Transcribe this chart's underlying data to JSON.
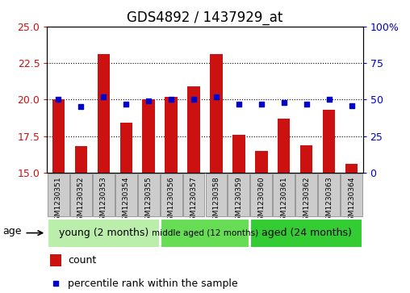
{
  "title": "GDS4892 / 1437929_at",
  "samples": [
    "GSM1230351",
    "GSM1230352",
    "GSM1230353",
    "GSM1230354",
    "GSM1230355",
    "GSM1230356",
    "GSM1230357",
    "GSM1230358",
    "GSM1230359",
    "GSM1230360",
    "GSM1230361",
    "GSM1230362",
    "GSM1230363",
    "GSM1230364"
  ],
  "counts": [
    20.0,
    16.8,
    23.1,
    18.4,
    20.0,
    20.2,
    20.9,
    23.1,
    17.6,
    16.5,
    18.7,
    16.9,
    19.3,
    15.6
  ],
  "percentile_ranks": [
    50,
    45,
    52,
    47,
    49,
    50,
    50,
    52,
    47,
    47,
    48,
    47,
    50,
    46
  ],
  "ylim_left": [
    15,
    25
  ],
  "ylim_right": [
    0,
    100
  ],
  "yticks_left": [
    15,
    17.5,
    20,
    22.5,
    25
  ],
  "yticks_right": [
    0,
    25,
    50,
    75,
    100
  ],
  "ytick_labels_right": [
    "0",
    "25",
    "50",
    "75",
    "100%"
  ],
  "bar_color": "#cc1111",
  "dot_color": "#0000cc",
  "bar_bottom": 15,
  "groups": [
    {
      "label": "young (2 months)",
      "start": 0,
      "end": 5
    },
    {
      "label": "middle aged (12 months)",
      "start": 5,
      "end": 9
    },
    {
      "label": "aged (24 months)",
      "start": 9,
      "end": 14
    }
  ],
  "group_colors": [
    "#bbeeaa",
    "#66dd55",
    "#33cc33"
  ],
  "age_label": "age",
  "legend_count_label": "count",
  "legend_percentile_label": "percentile rank within the sample",
  "grid_color": "black",
  "title_fontsize": 12,
  "axis_color_left": "#cc1111",
  "axis_color_right": "#0000cc",
  "sample_box_color": "#cccccc",
  "sample_box_edge": "#999999"
}
